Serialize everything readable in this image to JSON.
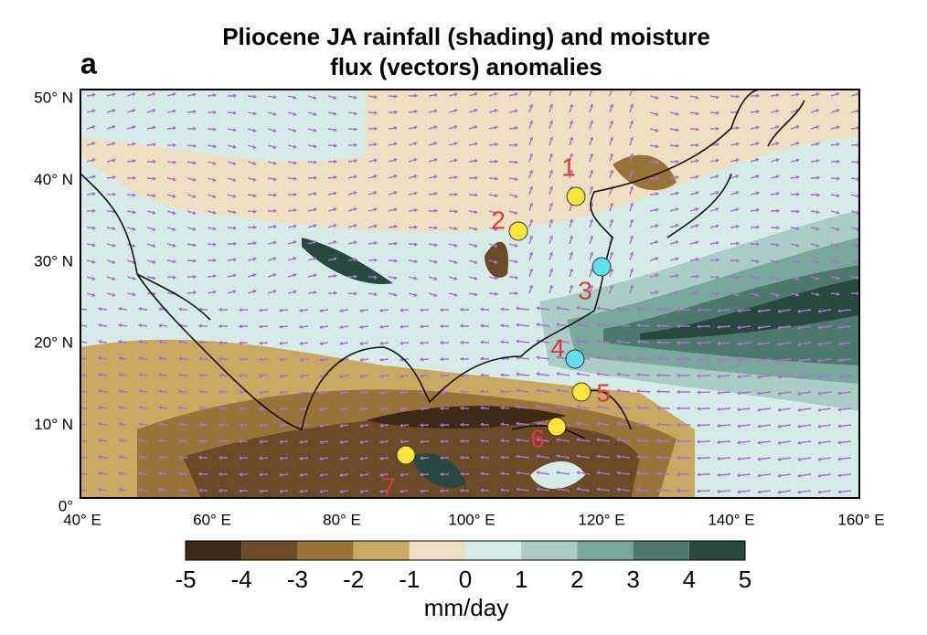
{
  "panel_label": "a",
  "title": [
    "Pliocene JA rainfall (shading) and moisture",
    "flux (vectors) anomalies"
  ],
  "map": {
    "lat_labels": [
      "50° N",
      "40° N",
      "30° N",
      "20° N",
      "10° N",
      "0°"
    ],
    "lon_labels": [
      "40° E",
      "60° E",
      "80° E",
      "100° E",
      "120° E",
      "140° E",
      "160° E"
    ],
    "sites": [
      {
        "label": "1",
        "color": "#f7e53a"
      },
      {
        "label": "2",
        "color": "#f7e53a"
      },
      {
        "label": "3",
        "color": "#5fe0ee"
      },
      {
        "label": "4",
        "color": "#5fe0ee"
      },
      {
        "label": "5",
        "color": "#f7e53a"
      },
      {
        "label": "6",
        "color": "#f7e53a"
      },
      {
        "label": "7",
        "color": "#f7e53a"
      }
    ]
  },
  "colorbar": {
    "ticks": [
      -5,
      -4,
      -3,
      -2,
      -1,
      0,
      1,
      2,
      3,
      4,
      5
    ],
    "colors": [
      "#3d2b17",
      "#6b4a26",
      "#9a7338",
      "#c9a861",
      "#ede0c0",
      "#d5ebe8",
      "#a7cdc4",
      "#78a89b",
      "#4b7a6c",
      "#274a3f"
    ],
    "label": "mm/day"
  }
}
